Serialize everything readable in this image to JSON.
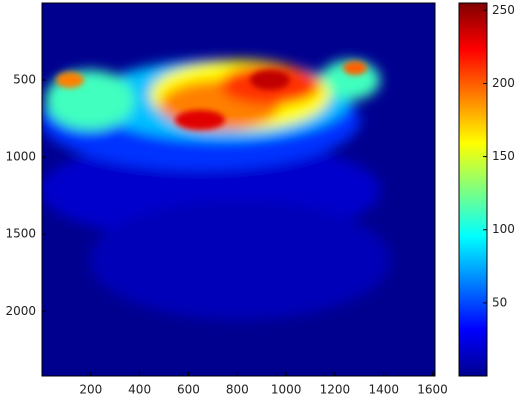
{
  "chart_data": {
    "type": "heatmap",
    "xlim": [
      0,
      1610
    ],
    "xticks": [
      200,
      400,
      600,
      800,
      1000,
      1200,
      1400,
      1600
    ],
    "ylim": [
      0,
      2420
    ],
    "yticks": [
      500,
      1000,
      1500,
      2000
    ],
    "clim": [
      0,
      255
    ],
    "cticks": [
      50,
      100,
      150,
      200,
      250
    ],
    "colormap": "jet"
  }
}
